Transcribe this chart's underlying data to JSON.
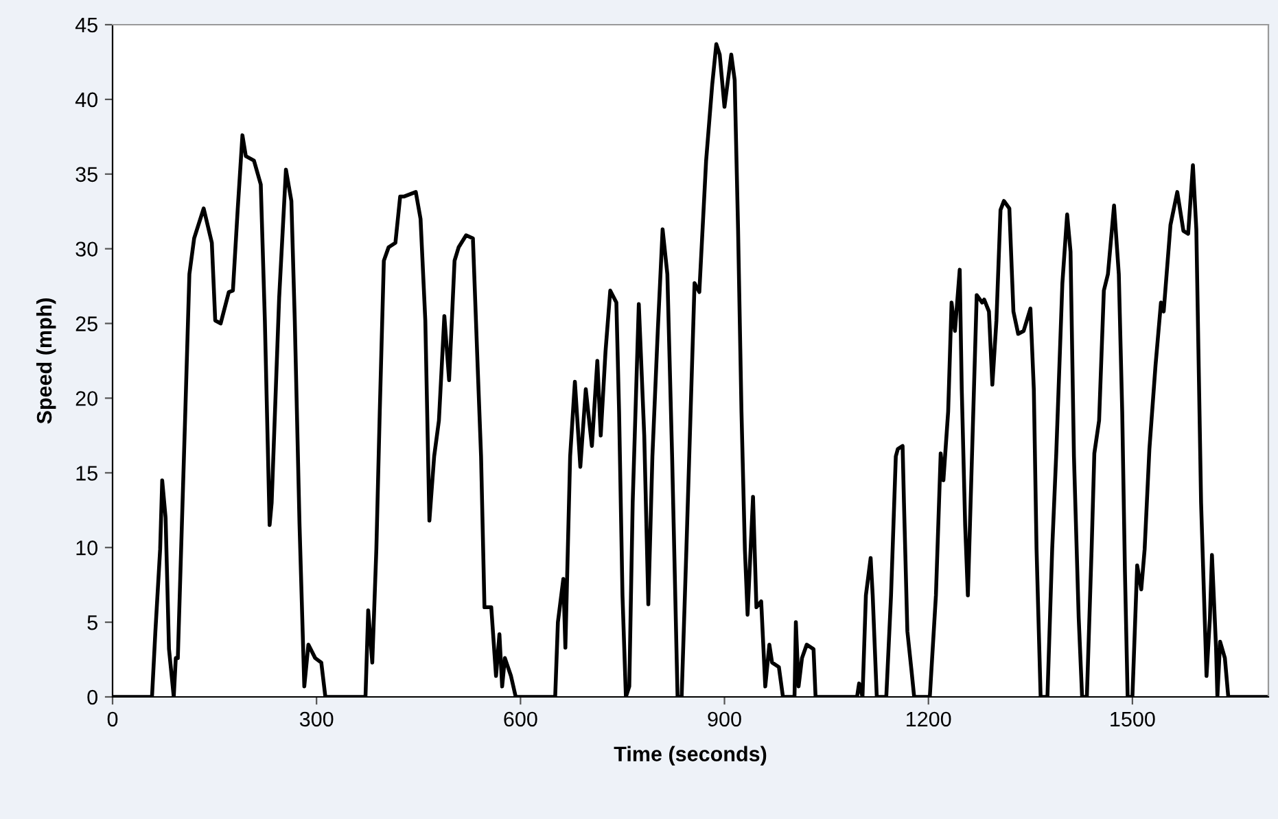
{
  "chart_data": {
    "type": "line",
    "xlabel": "Time (seconds)",
    "ylabel": "Speed (mph)",
    "xlim": [
      0,
      1700
    ],
    "xticks": [
      0,
      300,
      600,
      900,
      1200,
      1500
    ],
    "ylim": [
      0,
      45
    ],
    "yticks": [
      0,
      5,
      10,
      15,
      20,
      25,
      30,
      35,
      40,
      45
    ],
    "grid": false,
    "marker": "none",
    "line_style": "solid",
    "series": [
      {
        "color": "#000000",
        "x": [
          0,
          58,
          63,
          70,
          73,
          78,
          83,
          90,
          93,
          96,
          107,
          113,
          120,
          134,
          146,
          151,
          159,
          171,
          177,
          184,
          191,
          196,
          208,
          218,
          224,
          231,
          234,
          245,
          255,
          263,
          268,
          275,
          282,
          288,
          298,
          307,
          313,
          372,
          376,
          382,
          388,
          393,
          399,
          406,
          416,
          423,
          429,
          446,
          453,
          460,
          466,
          473,
          480,
          488,
          495,
          503,
          509,
          520,
          530,
          537,
          542,
          547,
          557,
          564,
          569,
          573,
          577,
          586,
          593,
          651,
          655,
          663,
          666,
          673,
          680,
          688,
          696,
          705,
          713,
          718,
          725,
          732,
          741,
          745,
          750,
          755,
          760,
          765,
          774,
          782,
          788,
          794,
          802,
          809,
          816,
          823,
          831,
          837,
          844,
          856,
          863,
          873,
          882,
          888,
          893,
          900,
          910,
          915,
          920,
          925,
          930,
          934,
          942,
          947,
          954,
          960,
          966,
          970,
          980,
          986,
          1003,
          1005,
          1009,
          1014,
          1021,
          1031,
          1034,
          1095,
          1098,
          1103,
          1108,
          1115,
          1118,
          1124,
          1138,
          1145,
          1152,
          1155,
          1162,
          1164,
          1169,
          1175,
          1179,
          1202,
          1211,
          1218,
          1222,
          1229,
          1234,
          1239,
          1246,
          1249,
          1254,
          1258,
          1263,
          1271,
          1279,
          1282,
          1289,
          1294,
          1300,
          1306,
          1311,
          1319,
          1325,
          1332,
          1340,
          1350,
          1355,
          1359,
          1365,
          1375,
          1382,
          1388,
          1397,
          1404,
          1409,
          1414,
          1421,
          1426,
          1433,
          1440,
          1444,
          1451,
          1458,
          1464,
          1473,
          1480,
          1485,
          1489,
          1493,
          1500,
          1507,
          1513,
          1518,
          1525,
          1534,
          1542,
          1546,
          1556,
          1566,
          1575,
          1582,
          1589,
          1594,
          1601,
          1609,
          1614,
          1617,
          1623,
          1625,
          1629,
          1636,
          1641,
          1700
        ],
        "values": [
          0,
          0,
          4.4,
          9.9,
          14.5,
          12.0,
          3.2,
          0,
          2.6,
          2.6,
          19.1,
          28.3,
          30.7,
          32.7,
          30.4,
          25.2,
          25.0,
          27.1,
          27.2,
          32.6,
          37.6,
          36.2,
          35.9,
          34.3,
          25.2,
          11.5,
          13.0,
          26.7,
          35.3,
          33.2,
          25.2,
          11.5,
          0.7,
          3.5,
          2.6,
          2.3,
          0,
          0,
          5.8,
          2.3,
          9.9,
          19.1,
          29.2,
          30.1,
          30.4,
          33.5,
          33.5,
          33.8,
          32.0,
          25.2,
          11.8,
          16.1,
          18.5,
          25.5,
          21.2,
          29.2,
          30.1,
          30.9,
          30.7,
          22.1,
          16.1,
          6.0,
          6.0,
          1.4,
          4.2,
          0.7,
          2.6,
          1.4,
          0,
          0,
          5.0,
          7.9,
          3.3,
          16.1,
          21.1,
          15.4,
          20.6,
          16.8,
          22.5,
          17.5,
          23.1,
          27.2,
          26.4,
          19.1,
          6.8,
          0,
          0.7,
          13.0,
          26.3,
          17.5,
          6.2,
          16.1,
          24.6,
          31.3,
          28.3,
          16.1,
          0,
          0,
          9.9,
          27.7,
          27.1,
          35.9,
          41.0,
          43.7,
          43.0,
          39.5,
          43.0,
          41.3,
          31.3,
          19.1,
          9.9,
          5.5,
          13.4,
          6.0,
          6.4,
          0.7,
          3.5,
          2.3,
          2.0,
          0,
          0,
          5.0,
          0.7,
          2.6,
          3.5,
          3.2,
          0,
          0,
          0.9,
          0,
          6.8,
          9.3,
          6.8,
          0,
          0,
          6.8,
          16.1,
          16.6,
          16.8,
          13.0,
          4.4,
          1.8,
          0,
          0,
          6.8,
          16.3,
          14.5,
          19.1,
          26.4,
          24.5,
          28.6,
          20.6,
          11.5,
          6.8,
          14.5,
          26.9,
          26.4,
          26.6,
          25.8,
          20.9,
          25.2,
          32.6,
          33.2,
          32.7,
          25.8,
          24.3,
          24.5,
          26.0,
          20.6,
          9.9,
          0,
          0,
          9.9,
          16.3,
          27.7,
          32.3,
          29.8,
          16.1,
          5.3,
          0,
          0,
          9.9,
          16.3,
          18.5,
          27.2,
          28.3,
          32.9,
          28.3,
          19.1,
          8.4,
          0,
          0,
          8.8,
          7.2,
          9.9,
          16.6,
          22.2,
          26.4,
          25.8,
          31.6,
          33.8,
          31.2,
          31.0,
          35.6,
          31.3,
          13.0,
          1.4,
          5.3,
          9.5,
          3.3,
          0,
          3.7,
          2.6,
          0,
          0
        ]
      }
    ]
  }
}
